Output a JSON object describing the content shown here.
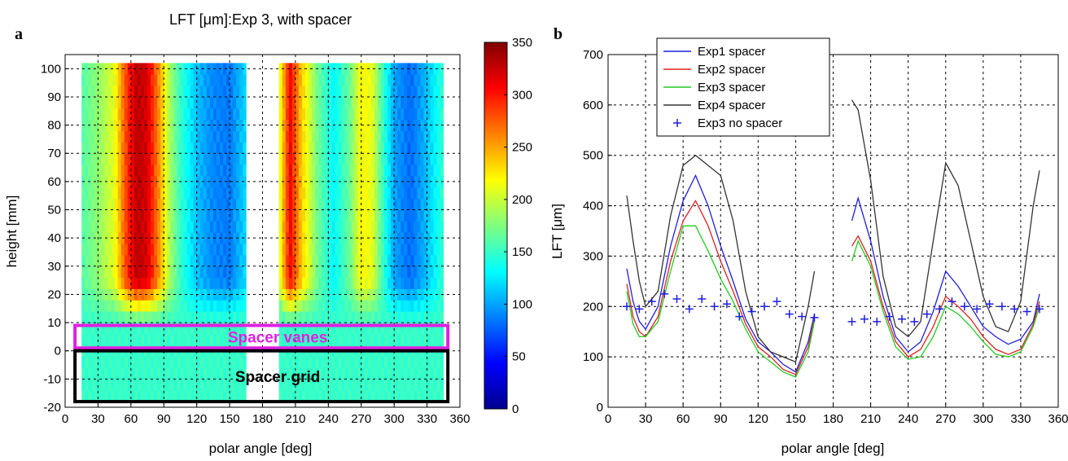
{
  "chart_data": [
    {
      "panel": "a",
      "type": "heatmap",
      "title": "LFT [μm]:Exp 3, with spacer",
      "xlabel": "polar angle [deg]",
      "ylabel": "height [mm]",
      "xlim": [
        0,
        360
      ],
      "ylim": [
        -20,
        105
      ],
      "xticks": [
        0,
        30,
        60,
        90,
        120,
        150,
        180,
        210,
        240,
        270,
        300,
        330,
        360
      ],
      "yticks": [
        -20,
        -10,
        0,
        10,
        20,
        30,
        40,
        50,
        60,
        70,
        80,
        90,
        100
      ],
      "grid": true,
      "colorbar": {
        "min": 0,
        "max": 350,
        "ticks": [
          0,
          50,
          100,
          150,
          200,
          250,
          300,
          350
        ]
      },
      "data_segments": [
        [
          15,
          165
        ],
        [
          195,
          345
        ]
      ],
      "height_range": [
        -18,
        102
      ],
      "angle_profile": [
        [
          15,
          160
        ],
        [
          30,
          180
        ],
        [
          45,
          210
        ],
        [
          55,
          280
        ],
        [
          65,
          330
        ],
        [
          75,
          320
        ],
        [
          85,
          260
        ],
        [
          95,
          190
        ],
        [
          105,
          150
        ],
        [
          120,
          110
        ],
        [
          135,
          90
        ],
        [
          150,
          85
        ],
        [
          165,
          120
        ],
        [
          195,
          200
        ],
        [
          205,
          310
        ],
        [
          215,
          240
        ],
        [
          230,
          170
        ],
        [
          245,
          130
        ],
        [
          260,
          170
        ],
        [
          270,
          220
        ],
        [
          280,
          210
        ],
        [
          290,
          150
        ],
        [
          300,
          100
        ],
        [
          315,
          80
        ],
        [
          330,
          110
        ],
        [
          345,
          150
        ]
      ],
      "annotations": [
        {
          "text": "Spacer vanes",
          "color": "#e020e0",
          "y_range": [
            1,
            9
          ]
        },
        {
          "text": "Spacer grid",
          "color": "#000000",
          "y_range": [
            -18,
            0
          ]
        }
      ]
    },
    {
      "panel": "b",
      "type": "line",
      "title": "",
      "xlabel": "polar angle [deg]",
      "ylabel": "LFT [μm]",
      "xlim": [
        0,
        360
      ],
      "ylim": [
        0,
        700
      ],
      "xticks": [
        0,
        30,
        60,
        90,
        120,
        150,
        180,
        210,
        240,
        270,
        300,
        330,
        360
      ],
      "yticks": [
        0,
        100,
        200,
        300,
        400,
        500,
        600,
        700
      ],
      "grid": true,
      "legend_position": "top-left",
      "series": [
        {
          "name": "Exp1 spacer",
          "color": "#1f1fdd",
          "marker": "line",
          "x": [
            15,
            20,
            25,
            30,
            40,
            50,
            60,
            70,
            80,
            90,
            100,
            110,
            120,
            130,
            140,
            150,
            160,
            165,
            null,
            195,
            200,
            210,
            220,
            230,
            240,
            250,
            260,
            270,
            280,
            290,
            300,
            310,
            320,
            330,
            340,
            345
          ],
          "y": [
            275,
            210,
            170,
            155,
            200,
            320,
            410,
            460,
            400,
            320,
            250,
            175,
            130,
            110,
            85,
            70,
            130,
            185,
            null,
            370,
            415,
            330,
            220,
            140,
            110,
            130,
            190,
            270,
            240,
            200,
            160,
            140,
            125,
            135,
            170,
            225
          ]
        },
        {
          "name": "Exp2 spacer",
          "color": "#e02020",
          "marker": "line",
          "x": [
            15,
            20,
            25,
            30,
            40,
            50,
            60,
            70,
            80,
            90,
            100,
            110,
            120,
            130,
            140,
            150,
            160,
            165,
            null,
            195,
            200,
            210,
            220,
            230,
            240,
            250,
            260,
            270,
            280,
            290,
            300,
            310,
            320,
            330,
            340,
            345
          ],
          "y": [
            245,
            180,
            150,
            140,
            180,
            290,
            370,
            410,
            360,
            290,
            230,
            165,
            120,
            100,
            75,
            65,
            120,
            175,
            null,
            320,
            340,
            290,
            200,
            130,
            100,
            115,
            160,
            220,
            200,
            175,
            140,
            115,
            105,
            115,
            165,
            210
          ]
        },
        {
          "name": "Exp3 spacer",
          "color": "#22cc22",
          "marker": "line",
          "x": [
            15,
            20,
            25,
            30,
            40,
            50,
            60,
            70,
            80,
            90,
            100,
            110,
            120,
            130,
            140,
            150,
            160,
            165,
            null,
            195,
            200,
            210,
            220,
            230,
            240,
            250,
            260,
            270,
            280,
            290,
            300,
            310,
            320,
            330,
            340,
            345
          ],
          "y": [
            230,
            165,
            140,
            140,
            170,
            270,
            360,
            360,
            310,
            255,
            210,
            155,
            110,
            90,
            70,
            60,
            110,
            170,
            null,
            290,
            330,
            280,
            190,
            120,
            95,
            100,
            140,
            200,
            185,
            160,
            130,
            105,
            100,
            110,
            160,
            200
          ]
        },
        {
          "name": "Exp4 spacer",
          "color": "#333333",
          "marker": "line",
          "x": [
            15,
            20,
            25,
            30,
            40,
            50,
            60,
            70,
            80,
            90,
            100,
            110,
            120,
            130,
            140,
            150,
            160,
            165,
            null,
            195,
            200,
            210,
            220,
            230,
            240,
            250,
            260,
            270,
            280,
            290,
            300,
            310,
            320,
            330,
            340,
            345
          ],
          "y": [
            420,
            330,
            250,
            200,
            230,
            380,
            480,
            500,
            480,
            460,
            370,
            230,
            140,
            110,
            100,
            90,
            200,
            270,
            null,
            610,
            590,
            450,
            260,
            160,
            140,
            170,
            330,
            485,
            440,
            330,
            220,
            160,
            150,
            210,
            400,
            470
          ]
        },
        {
          "name": "Exp3 no spacer",
          "color": "#1f1fdd",
          "marker": "plus",
          "x": [
            15,
            25,
            35,
            45,
            55,
            65,
            75,
            85,
            95,
            105,
            115,
            125,
            135,
            145,
            155,
            165,
            null,
            195,
            205,
            215,
            225,
            235,
            245,
            255,
            265,
            275,
            285,
            295,
            305,
            315,
            325,
            335,
            345
          ],
          "y": [
            200,
            195,
            210,
            225,
            215,
            195,
            215,
            200,
            205,
            180,
            190,
            200,
            210,
            185,
            180,
            178,
            null,
            170,
            175,
            170,
            180,
            175,
            170,
            185,
            195,
            210,
            200,
            195,
            205,
            200,
            195,
            190,
            195
          ]
        }
      ]
    }
  ]
}
